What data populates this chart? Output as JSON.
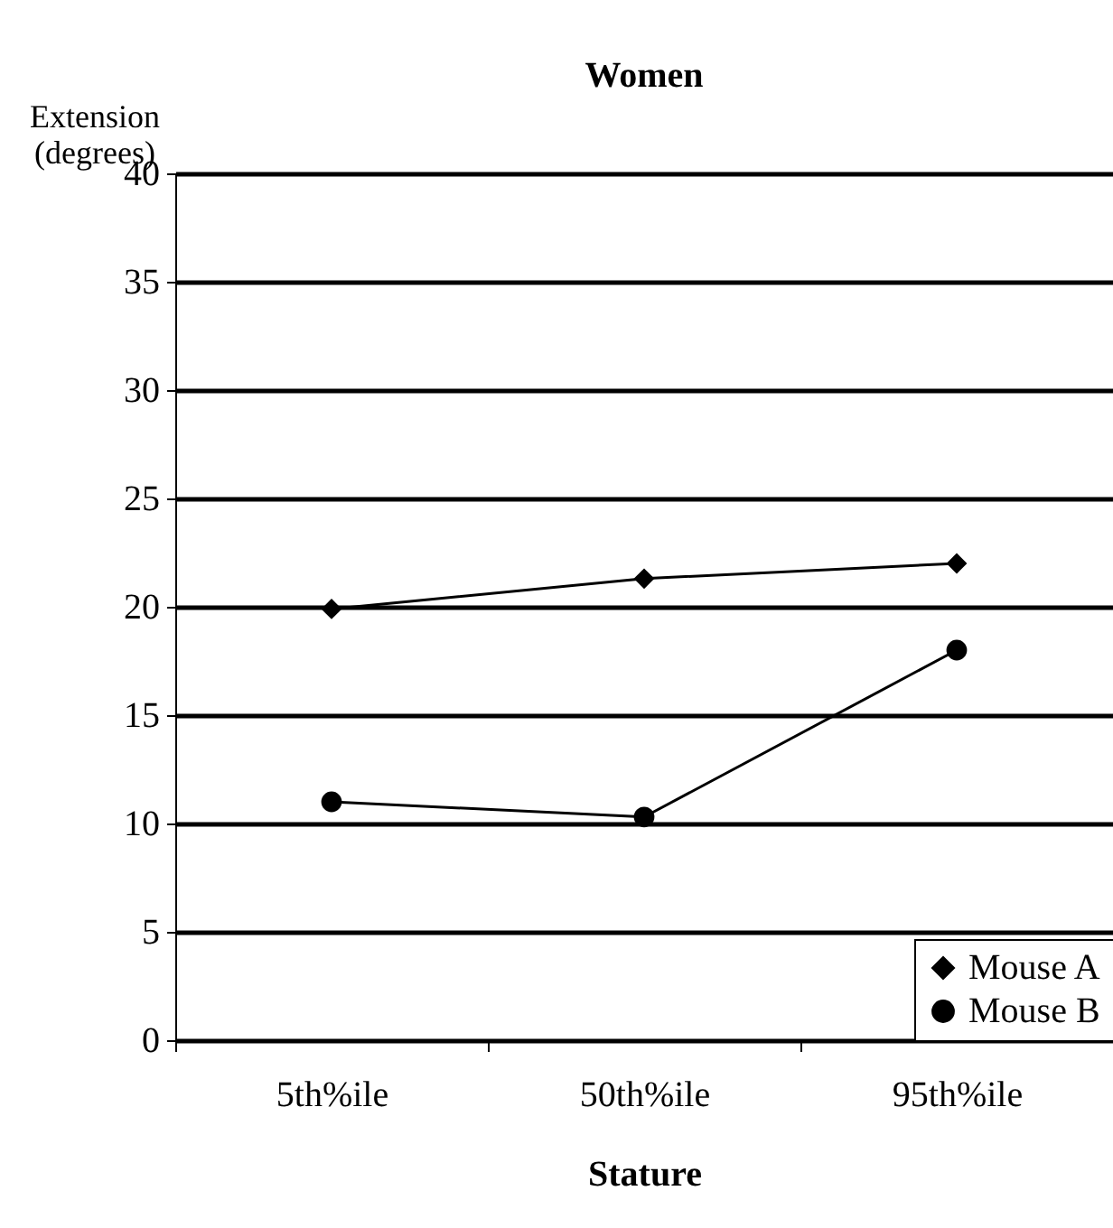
{
  "chart_data": {
    "type": "line",
    "title": "Women",
    "xlabel": "Stature",
    "ylabel": "Extension (degrees)",
    "categories": [
      "5th%ile",
      "50th%ile",
      "95th%ile"
    ],
    "series": [
      {
        "name": "Mouse A",
        "color": "#000000",
        "marker": "diamond",
        "values": [
          19.9,
          21.3,
          22
        ]
      },
      {
        "name": "Mouse B",
        "color": "#000000",
        "marker": "circle",
        "values": [
          11,
          10.3,
          18
        ]
      }
    ],
    "ylim": [
      0,
      40
    ],
    "yticks": [
      0,
      5,
      10,
      15,
      20,
      25,
      30,
      35,
      40
    ],
    "grid": "y",
    "legend": "bottom right",
    "line_style": "solid"
  }
}
